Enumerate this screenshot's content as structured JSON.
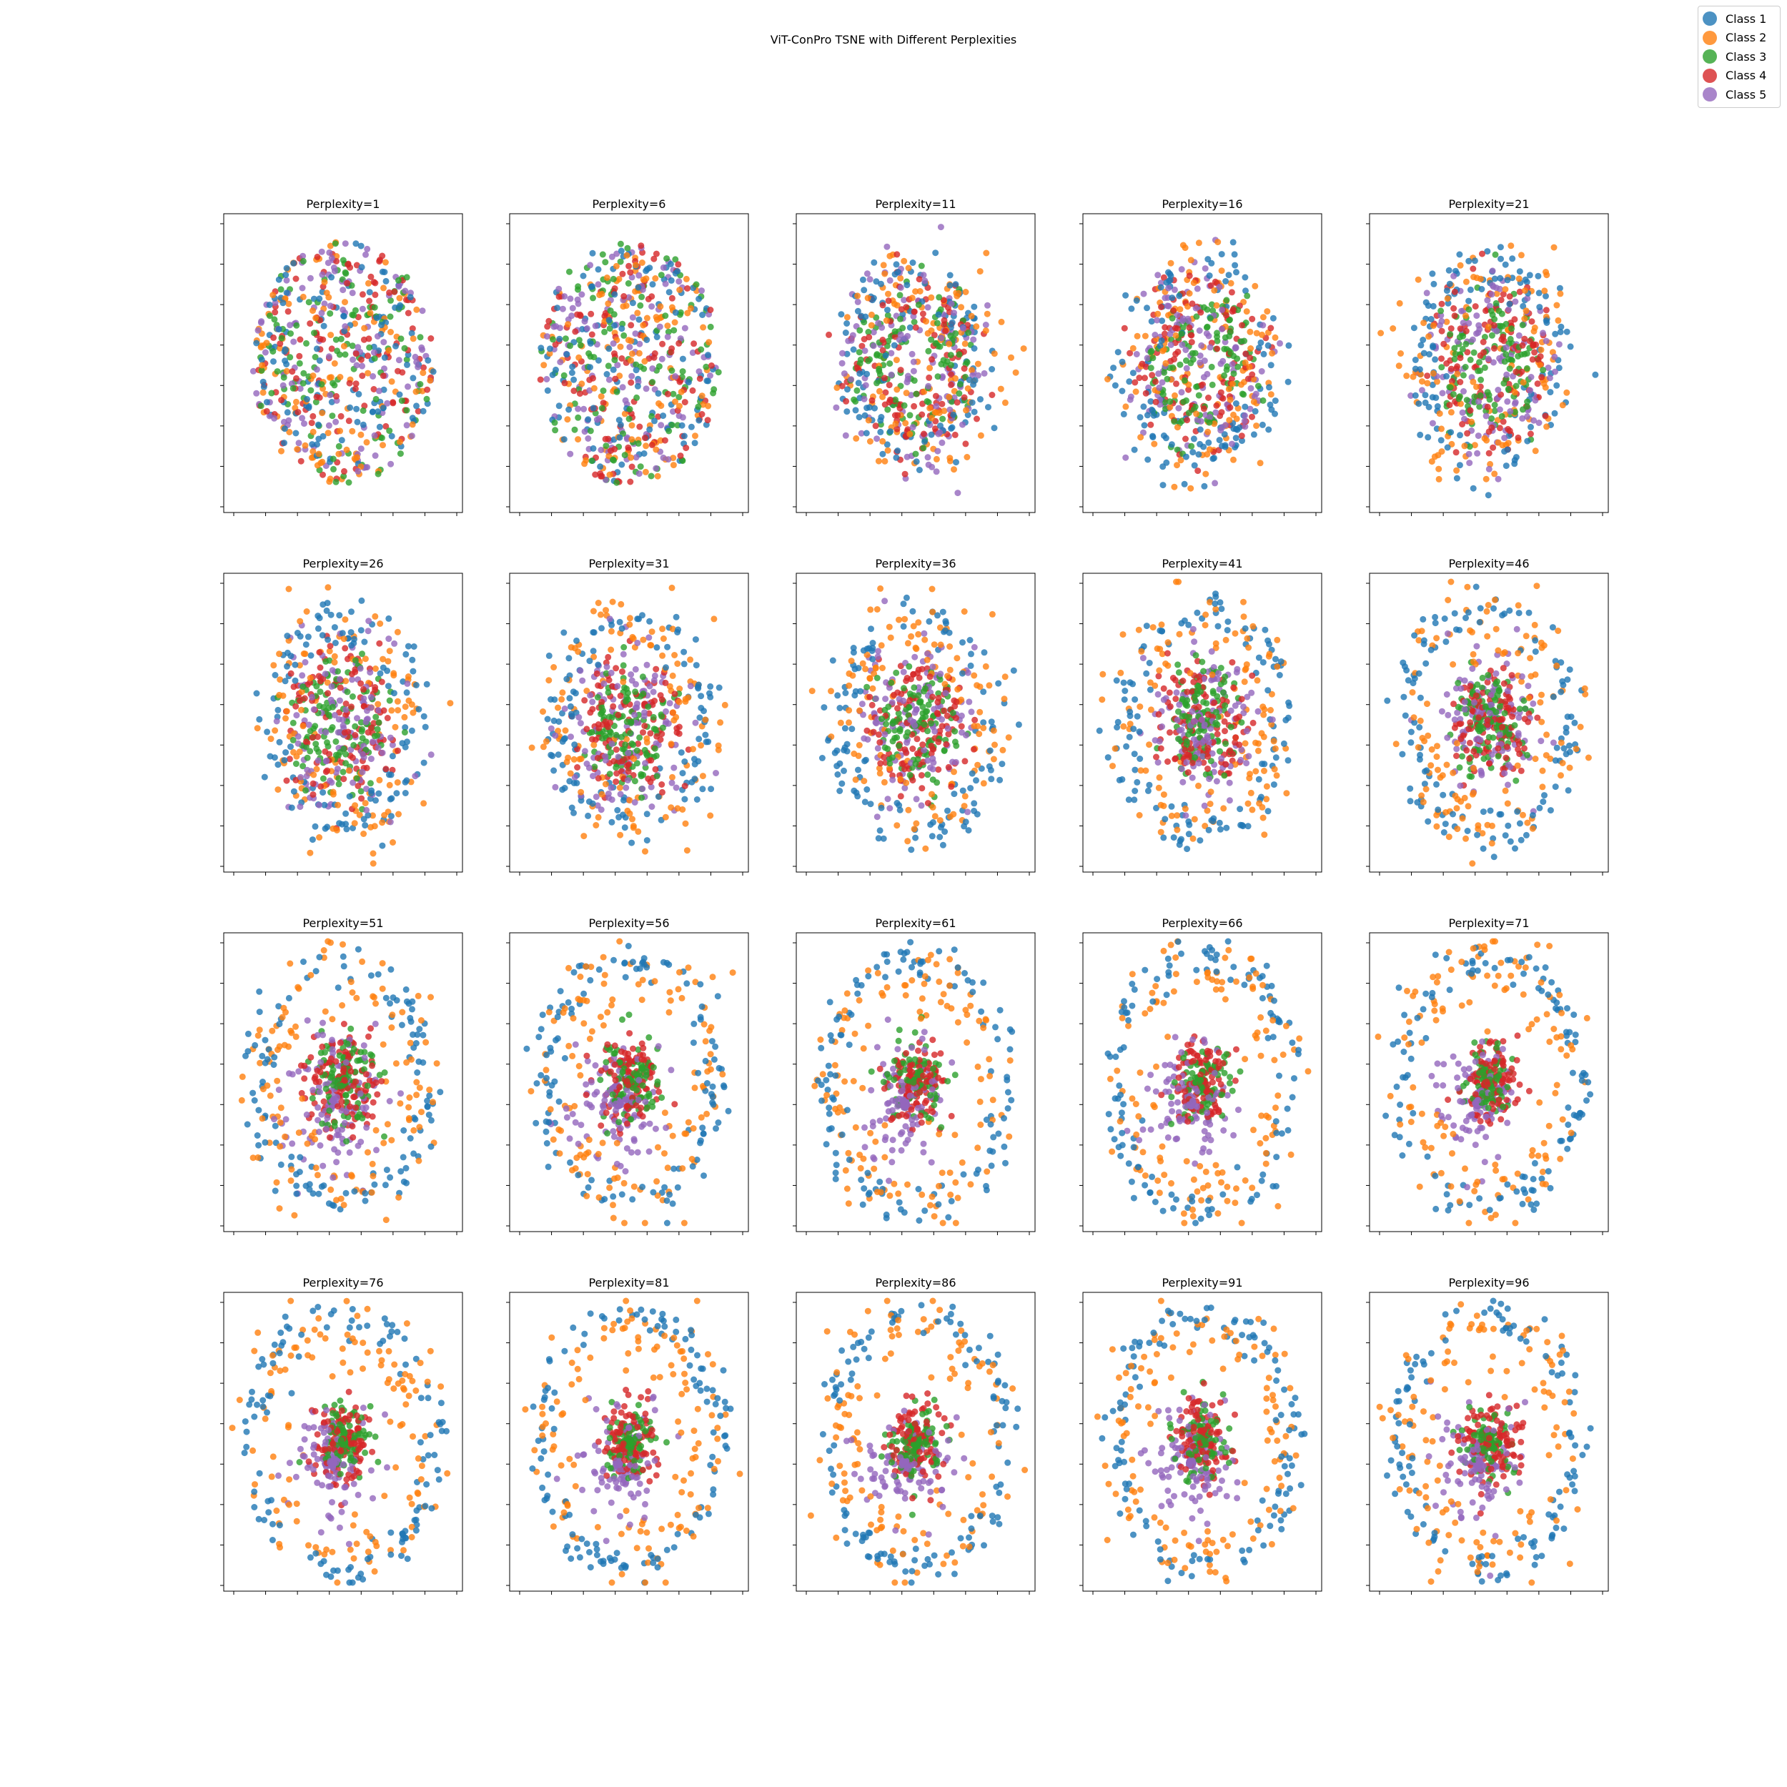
{
  "figure": {
    "suptitle": "ViT-ConPro TSNE with Different Perplexities"
  },
  "legend": [
    {
      "label": "Class 1",
      "color": "#1f77b4"
    },
    {
      "label": "Class 2",
      "color": "#ff7f0e"
    },
    {
      "label": "Class 3",
      "color": "#2ca02c"
    },
    {
      "label": "Class 4",
      "color": "#d62728"
    },
    {
      "label": "Class 5",
      "color": "#9467bd"
    }
  ],
  "chart_data": [
    {
      "type": "scatter",
      "title": "Perplexity=1",
      "perplexity": 1,
      "pattern": "mixed-blob"
    },
    {
      "type": "scatter",
      "title": "Perplexity=6",
      "perplexity": 6,
      "pattern": "mixed-blob"
    },
    {
      "type": "scatter",
      "title": "Perplexity=11",
      "perplexity": 11,
      "pattern": "ring-forming"
    },
    {
      "type": "scatter",
      "title": "Perplexity=16",
      "perplexity": 16,
      "pattern": "ring-forming"
    },
    {
      "type": "scatter",
      "title": "Perplexity=21",
      "perplexity": 21,
      "pattern": "ring-forming"
    },
    {
      "type": "scatter",
      "title": "Perplexity=26",
      "perplexity": 26,
      "pattern": "concentric"
    },
    {
      "type": "scatter",
      "title": "Perplexity=31",
      "perplexity": 31,
      "pattern": "concentric"
    },
    {
      "type": "scatter",
      "title": "Perplexity=36",
      "perplexity": 36,
      "pattern": "concentric"
    },
    {
      "type": "scatter",
      "title": "Perplexity=41",
      "perplexity": 41,
      "pattern": "concentric"
    },
    {
      "type": "scatter",
      "title": "Perplexity=46",
      "perplexity": 46,
      "pattern": "concentric"
    },
    {
      "type": "scatter",
      "title": "Perplexity=51",
      "perplexity": 51,
      "pattern": "concentric"
    },
    {
      "type": "scatter",
      "title": "Perplexity=56",
      "perplexity": 56,
      "pattern": "concentric"
    },
    {
      "type": "scatter",
      "title": "Perplexity=61",
      "perplexity": 61,
      "pattern": "concentric"
    },
    {
      "type": "scatter",
      "title": "Perplexity=66",
      "perplexity": 66,
      "pattern": "concentric"
    },
    {
      "type": "scatter",
      "title": "Perplexity=71",
      "perplexity": 71,
      "pattern": "concentric"
    },
    {
      "type": "scatter",
      "title": "Perplexity=76",
      "perplexity": 76,
      "pattern": "core"
    },
    {
      "type": "scatter",
      "title": "Perplexity=81",
      "perplexity": 81,
      "pattern": "core"
    },
    {
      "type": "scatter",
      "title": "Perplexity=86",
      "perplexity": 86,
      "pattern": "core"
    },
    {
      "type": "scatter",
      "title": "Perplexity=91",
      "perplexity": 91,
      "pattern": "core"
    },
    {
      "type": "scatter",
      "title": "Perplexity=96",
      "perplexity": 96,
      "pattern": "core"
    }
  ]
}
